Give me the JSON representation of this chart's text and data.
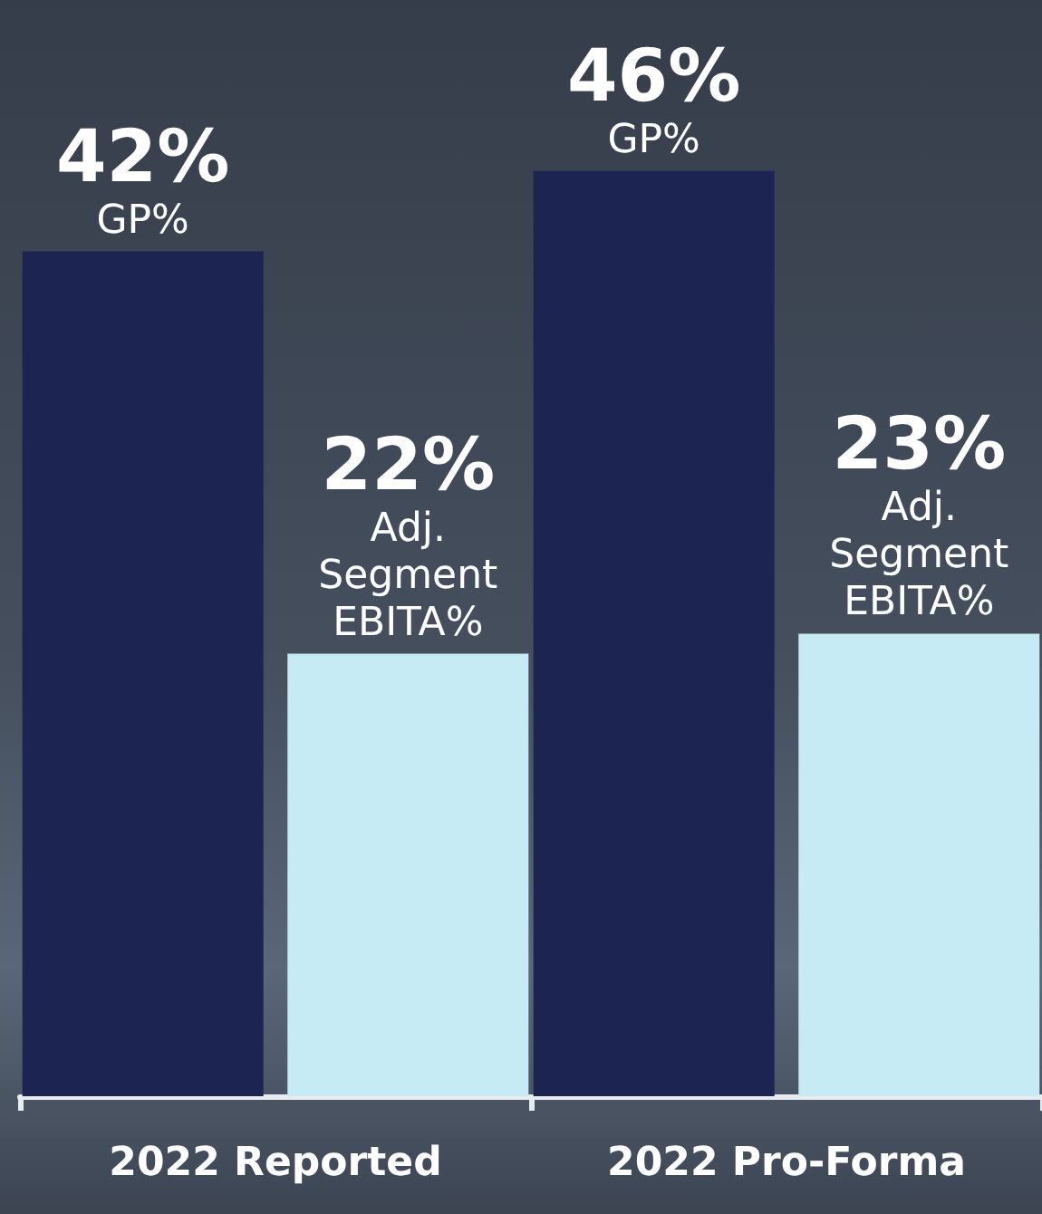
{
  "chart_data": {
    "type": "bar",
    "categories": [
      "2022 Reported",
      "2022 Pro-Forma"
    ],
    "series": [
      {
        "name": "GP%",
        "color": "#1c2452",
        "values": [
          42,
          46
        ],
        "value_labels": [
          "42%",
          "46%"
        ]
      },
      {
        "name": "Adj. Segment EBITA%",
        "color": "#c6ebf4",
        "values": [
          22,
          23
        ],
        "value_labels": [
          "22%",
          "23%"
        ]
      }
    ],
    "legend": false,
    "grid": false
  }
}
